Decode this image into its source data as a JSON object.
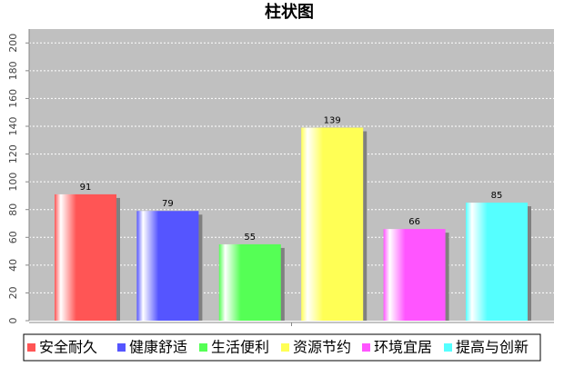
{
  "chart_data": {
    "type": "bar",
    "title": "柱状图",
    "categories": [
      "安全耐久",
      "健康舒适",
      "生活便利",
      "资源节约",
      "环境宜居",
      "提高与创新"
    ],
    "values": [
      91,
      79,
      55,
      139,
      66,
      85
    ],
    "colors": [
      "#ff5555",
      "#5555ff",
      "#55ff55",
      "#ffff55",
      "#ff55ff",
      "#55ffff"
    ],
    "ylim": [
      0,
      210
    ],
    "yticks": [
      0,
      20,
      40,
      60,
      80,
      100,
      120,
      140,
      160,
      180,
      200
    ],
    "grid": true,
    "legend": "bottom"
  }
}
